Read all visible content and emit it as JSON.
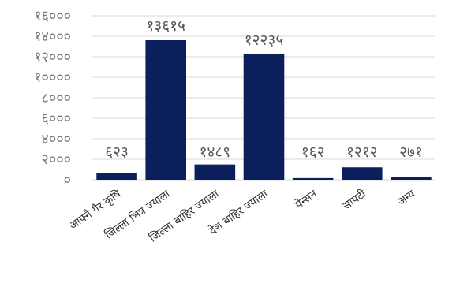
{
  "chart_data": {
    "type": "bar",
    "title": "",
    "xlabel": "",
    "ylabel": "",
    "ylim": [
      0,
      16000
    ],
    "y_ticks": [
      0,
      2000,
      4000,
      6000,
      8000,
      10000,
      12000,
      14000,
      16000
    ],
    "y_tick_labels": [
      "०",
      "२०००",
      "४०००",
      "६०००",
      "८०००",
      "१००००",
      "१२०००",
      "१४०००",
      "१६०००"
    ],
    "categories": [
      "आफ्नै गैर कृषि",
      "जिल्ला भित्र ज्याला",
      "जिल्ला बाहिर ज्याला",
      "देश बाहिर ज्याला",
      "पेन्सन",
      "सापटी",
      "अन्य"
    ],
    "values": [
      623,
      13615,
      1489,
      12235,
      162,
      1212,
      271
    ],
    "data_labels": [
      "६२३",
      "१३६१५",
      "१४८९",
      "१२२३५",
      "१६२",
      "१२१२",
      "२७१"
    ],
    "bar_color": "#0b1f5c",
    "grid": true,
    "legend": "none"
  }
}
